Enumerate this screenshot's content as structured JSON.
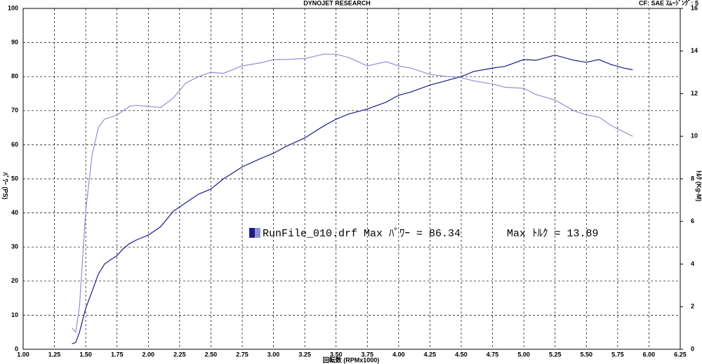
{
  "chart_data": {
    "type": "line",
    "title": "DYNOJET  RESEARCH",
    "subtitle": "CF: SAE  ｽﾑｰｼﾞﾝｸﾞ: 5",
    "xlabel": "回転数 (RPMx1000)",
    "ylabel": "ﾊﾟﾜｰ (PS)",
    "y2label": "ﾄﾙｸ (Kg-M)",
    "legend": [
      "RunFile_010.drf Max ﾊﾟﾜｰ = 86.34",
      "Max ﾄﾙｸ = 13.89"
    ],
    "x": [
      1.39,
      1.42,
      1.45,
      1.5,
      1.55,
      1.6,
      1.65,
      1.7,
      1.75,
      1.8,
      1.85,
      1.9,
      2.0,
      2.1,
      2.2,
      2.3,
      2.4,
      2.5,
      2.6,
      2.75,
      2.9,
      3.0,
      3.1,
      3.25,
      3.4,
      3.5,
      3.6,
      3.75,
      3.9,
      4.0,
      4.1,
      4.25,
      4.4,
      4.5,
      4.6,
      4.75,
      4.85,
      5.0,
      5.1,
      5.25,
      5.4,
      5.5,
      5.6,
      5.7,
      5.8,
      5.87
    ],
    "series": [
      {
        "color": "#1c1c8a",
        "values": [
          1.6,
          2,
          5,
          12,
          17,
          22,
          25,
          26.3,
          27.5,
          29.5,
          31,
          32,
          33.5,
          36,
          40.5,
          43,
          45.5,
          47,
          50,
          53.5,
          56,
          57.5,
          59.5,
          62,
          65.5,
          67.5,
          69,
          70.5,
          72.5,
          74.5,
          75.5,
          77.5,
          79,
          80,
          81.5,
          82.5,
          83,
          85,
          84.8,
          86.3,
          84.8,
          84.2,
          85,
          83.5,
          82.5,
          82
        ]
      },
      {
        "color": "#9090d8",
        "axis": "y2",
        "values": [
          1.0,
          0.8,
          2,
          6.5,
          9.1,
          10.4,
          10.8,
          10.9,
          11,
          11.2,
          11.4,
          11.45,
          11.4,
          11.35,
          11.8,
          12.5,
          12.8,
          13.0,
          12.95,
          13.3,
          13.45,
          13.6,
          13.6,
          13.65,
          13.85,
          13.85,
          13.7,
          13.3,
          13.5,
          13.3,
          13.2,
          12.9,
          12.8,
          12.75,
          12.6,
          12.45,
          12.3,
          12.25,
          11.95,
          11.7,
          11.2,
          11.0,
          10.9,
          10.5,
          10.2,
          10.0
        ]
      }
    ],
    "xlim": [
      1.0,
      6.25
    ],
    "xticks": [
      {
        "value": 1.0,
        "label": "1.00"
      },
      {
        "value": 1.25,
        "label": "1.25"
      },
      {
        "value": 1.5,
        "label": "1.50"
      },
      {
        "value": 1.75,
        "label": "1.75"
      },
      {
        "value": 2.0,
        "label": "2.00"
      },
      {
        "value": 2.25,
        "label": "2.25"
      },
      {
        "value": 2.5,
        "label": "2.50"
      },
      {
        "value": 2.75,
        "label": "2.75"
      },
      {
        "value": 3.0,
        "label": "3.00"
      },
      {
        "value": 3.25,
        "label": "3.25"
      },
      {
        "value": 3.5,
        "label": "3.50"
      },
      {
        "value": 3.75,
        "label": "3.75"
      },
      {
        "value": 4.0,
        "label": "4.00"
      },
      {
        "value": 4.25,
        "label": "4.25"
      },
      {
        "value": 4.5,
        "label": "4.50"
      },
      {
        "value": 4.75,
        "label": "4.75"
      },
      {
        "value": 5.0,
        "label": "5.00"
      },
      {
        "value": 5.25,
        "label": "5.25"
      },
      {
        "value": 5.5,
        "label": "5.50"
      },
      {
        "value": 5.75,
        "label": "5.75"
      },
      {
        "value": 6.0,
        "label": "6.00"
      },
      {
        "value": 6.25,
        "label": "6.25"
      }
    ],
    "ylim": [
      0,
      100
    ],
    "yticks": [
      0,
      10,
      20,
      30,
      40,
      50,
      60,
      70,
      80,
      90,
      100
    ],
    "y2lim": [
      0,
      16
    ],
    "y2ticks": [
      0,
      2,
      4,
      6,
      8,
      10,
      12,
      14,
      16
    ],
    "grid": true
  }
}
